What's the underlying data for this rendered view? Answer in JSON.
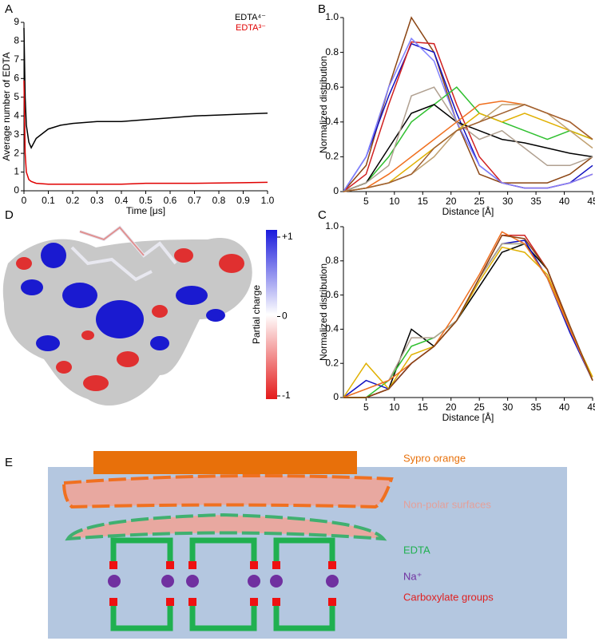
{
  "panel_labels": [
    "A",
    "B",
    "C",
    "D",
    "E"
  ],
  "chart_data": [
    {
      "type": "line",
      "xlabel": "Time [μs]",
      "ylabel": "Average number of EDTA",
      "x": [
        0,
        0.005,
        0.01,
        0.02,
        0.03,
        0.05,
        0.1,
        0.15,
        0.2,
        0.3,
        0.4,
        0.5,
        0.6,
        0.7,
        0.8,
        0.9,
        1.0
      ],
      "series": [
        {
          "name": "EDTA⁴⁻",
          "color": "#000000",
          "values": [
            8.7,
            5,
            3.5,
            2.6,
            2.3,
            2.8,
            3.3,
            3.5,
            3.6,
            3.7,
            3.7,
            3.8,
            3.9,
            4.0,
            4.05,
            4.1,
            4.15
          ]
        },
        {
          "name": "EDTA³⁻",
          "color": "#e00000",
          "values": [
            5.9,
            2,
            1,
            0.6,
            0.5,
            0.4,
            0.35,
            0.35,
            0.35,
            0.35,
            0.35,
            0.4,
            0.4,
            0.4,
            0.42,
            0.43,
            0.45
          ]
        }
      ],
      "xlim": [
        0,
        1
      ],
      "xticks": [
        0,
        0.1,
        0.2,
        0.3,
        0.4,
        0.5,
        0.6,
        0.7,
        0.8,
        0.9,
        {
          "value": 1,
          "label": "1.0"
        }
      ],
      "ylim": [
        0,
        9
      ],
      "yticks": [
        0,
        1,
        2,
        3,
        4,
        5,
        6,
        7,
        8,
        9
      ],
      "legend": "upper right"
    },
    {
      "type": "line",
      "xlabel": "Distance [Å]",
      "ylabel": "Normalized distribution",
      "x": [
        1,
        5,
        9,
        13,
        17,
        21,
        25,
        29,
        33,
        37,
        41,
        45
      ],
      "series": [
        {
          "color": "#8b4513",
          "values": [
            0,
            0.15,
            0.6,
            1.0,
            0.8,
            0.4,
            0.1,
            0.05,
            0.05,
            0.05,
            0.1,
            0.2
          ]
        },
        {
          "color": "#1010c0",
          "values": [
            0,
            0.2,
            0.55,
            0.85,
            0.8,
            0.45,
            0.15,
            0.05,
            0.02,
            0.02,
            0.05,
            0.15
          ]
        },
        {
          "color": "#d02020",
          "values": [
            0,
            0.1,
            0.5,
            0.86,
            0.85,
            0.5,
            0.2,
            0.05,
            0.02,
            0.02,
            0.05,
            0.1
          ]
        },
        {
          "color": "#8080ff",
          "values": [
            0,
            0.2,
            0.6,
            0.88,
            0.75,
            0.4,
            0.15,
            0.05,
            0.02,
            0.02,
            0.05,
            0.1
          ]
        },
        {
          "color": "#30c030",
          "values": [
            0,
            0.05,
            0.2,
            0.4,
            0.5,
            0.6,
            0.45,
            0.4,
            0.35,
            0.3,
            0.35,
            0.3
          ]
        },
        {
          "color": "#000000",
          "values": [
            0,
            0.05,
            0.25,
            0.45,
            0.5,
            0.4,
            0.35,
            0.3,
            0.28,
            0.25,
            0.22,
            0.2
          ]
        },
        {
          "color": "#b0a090",
          "values": [
            0,
            0.05,
            0.15,
            0.55,
            0.6,
            0.4,
            0.3,
            0.35,
            0.25,
            0.15,
            0.15,
            0.2
          ]
        },
        {
          "color": "#f07020",
          "values": [
            0,
            0.02,
            0.1,
            0.2,
            0.3,
            0.4,
            0.5,
            0.52,
            0.5,
            0.45,
            0.4,
            0.3
          ]
        },
        {
          "color": "#e0b000",
          "values": [
            0,
            0.02,
            0.05,
            0.15,
            0.25,
            0.35,
            0.45,
            0.4,
            0.45,
            0.4,
            0.35,
            0.3
          ]
        },
        {
          "color": "#c0a070",
          "values": [
            0,
            0.02,
            0.05,
            0.1,
            0.2,
            0.35,
            0.4,
            0.5,
            0.5,
            0.45,
            0.35,
            0.25
          ]
        },
        {
          "color": "#a06030",
          "values": [
            0,
            0.02,
            0.05,
            0.1,
            0.25,
            0.35,
            0.4,
            0.45,
            0.5,
            0.45,
            0.4,
            0.3
          ]
        }
      ],
      "xlim": [
        1,
        45
      ],
      "xticks": [
        5,
        10,
        15,
        20,
        25,
        30,
        35,
        40,
        45
      ],
      "ylim": [
        0,
        1
      ],
      "yticks": [
        0,
        0.2,
        0.4,
        0.6,
        0.8,
        {
          "value": 1,
          "label": "1.0"
        }
      ]
    },
    {
      "type": "line",
      "xlabel": "Distance [Å]",
      "ylabel": "Normalized distribution",
      "x": [
        1,
        5,
        9,
        13,
        17,
        21,
        25,
        29,
        33,
        37,
        41,
        45
      ],
      "series": [
        {
          "color": "#000000",
          "values": [
            0,
            0,
            0.05,
            0.4,
            0.3,
            0.45,
            0.65,
            0.85,
            0.9,
            0.75,
            0.4,
            0.1
          ]
        },
        {
          "color": "#d02020",
          "values": [
            0,
            0,
            0.05,
            0.2,
            0.3,
            0.45,
            0.7,
            0.95,
            0.95,
            0.75,
            0.4,
            0.1
          ]
        },
        {
          "color": "#30c030",
          "values": [
            0,
            0,
            0.1,
            0.3,
            0.35,
            0.45,
            0.7,
            0.9,
            0.9,
            0.7,
            0.4,
            0.1
          ]
        },
        {
          "color": "#1010c0",
          "values": [
            0,
            0.1,
            0.05,
            0.2,
            0.3,
            0.45,
            0.7,
            0.9,
            0.92,
            0.7,
            0.38,
            0.1
          ]
        },
        {
          "color": "#e0b000",
          "values": [
            0,
            0.2,
            0.05,
            0.25,
            0.3,
            0.45,
            0.68,
            0.88,
            0.85,
            0.72,
            0.4,
            0.12
          ]
        },
        {
          "color": "#b0a090",
          "values": [
            0,
            0.05,
            0.1,
            0.35,
            0.35,
            0.45,
            0.7,
            0.9,
            0.9,
            0.7,
            0.4,
            0.1
          ]
        },
        {
          "color": "#f07020",
          "values": [
            0,
            0.05,
            0.1,
            0.2,
            0.3,
            0.5,
            0.72,
            0.97,
            0.9,
            0.7,
            0.4,
            0.1
          ]
        },
        {
          "color": "#8b4513",
          "values": [
            0,
            0,
            0.05,
            0.2,
            0.3,
            0.45,
            0.7,
            0.95,
            0.93,
            0.75,
            0.42,
            0.1
          ]
        }
      ],
      "xlim": [
        1,
        45
      ],
      "xticks": [
        5,
        10,
        15,
        20,
        25,
        30,
        35,
        40,
        45
      ],
      "ylim": [
        0,
        1
      ],
      "yticks": [
        0,
        0.2,
        0.4,
        0.6,
        0.8,
        {
          "value": 1,
          "label": "1.0"
        }
      ]
    }
  ],
  "colorbar": {
    "label": "Partial charge",
    "ticks": [
      {
        "value": 1,
        "label": "+1"
      },
      0,
      {
        "value": -1,
        "label": "-1"
      }
    ]
  },
  "diagram": {
    "labels": [
      "Sypro orange",
      "Non-polar surfaces",
      "EDTA",
      "Na⁺",
      "Carboxylate groups"
    ]
  }
}
